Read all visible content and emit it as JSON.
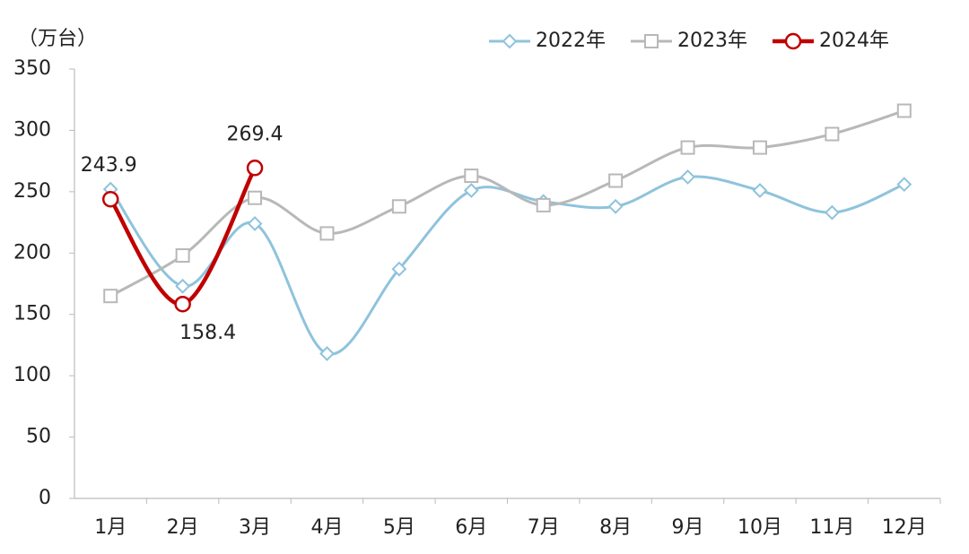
{
  "chart_data": {
    "type": "line",
    "y_label": "（万台）",
    "categories": [
      "1月",
      "2月",
      "3月",
      "4月",
      "5月",
      "6月",
      "7月",
      "8月",
      "9月",
      "10月",
      "11月",
      "12月"
    ],
    "series": [
      {
        "name": "2022年",
        "color": "#8fc3dc",
        "marker": "diamond",
        "values": [
          252,
          173,
          224,
          118,
          187,
          251,
          242,
          238,
          262,
          251,
          233,
          256
        ]
      },
      {
        "name": "2023年",
        "color": "#b8b8b8",
        "marker": "square",
        "values": [
          165,
          198,
          245,
          216,
          238,
          263,
          239,
          259,
          286,
          286,
          297,
          316
        ]
      },
      {
        "name": "2024年",
        "color": "#c00000",
        "marker": "circle",
        "values": [
          243.9,
          158.4,
          269.4,
          null,
          null,
          null,
          null,
          null,
          null,
          null,
          null,
          null
        ],
        "data_labels": true
      }
    ],
    "ylim": [
      0,
      350
    ],
    "yticks": [
      0,
      50,
      100,
      150,
      200,
      250,
      300,
      350
    ],
    "grid": false,
    "legend": "top-right"
  }
}
